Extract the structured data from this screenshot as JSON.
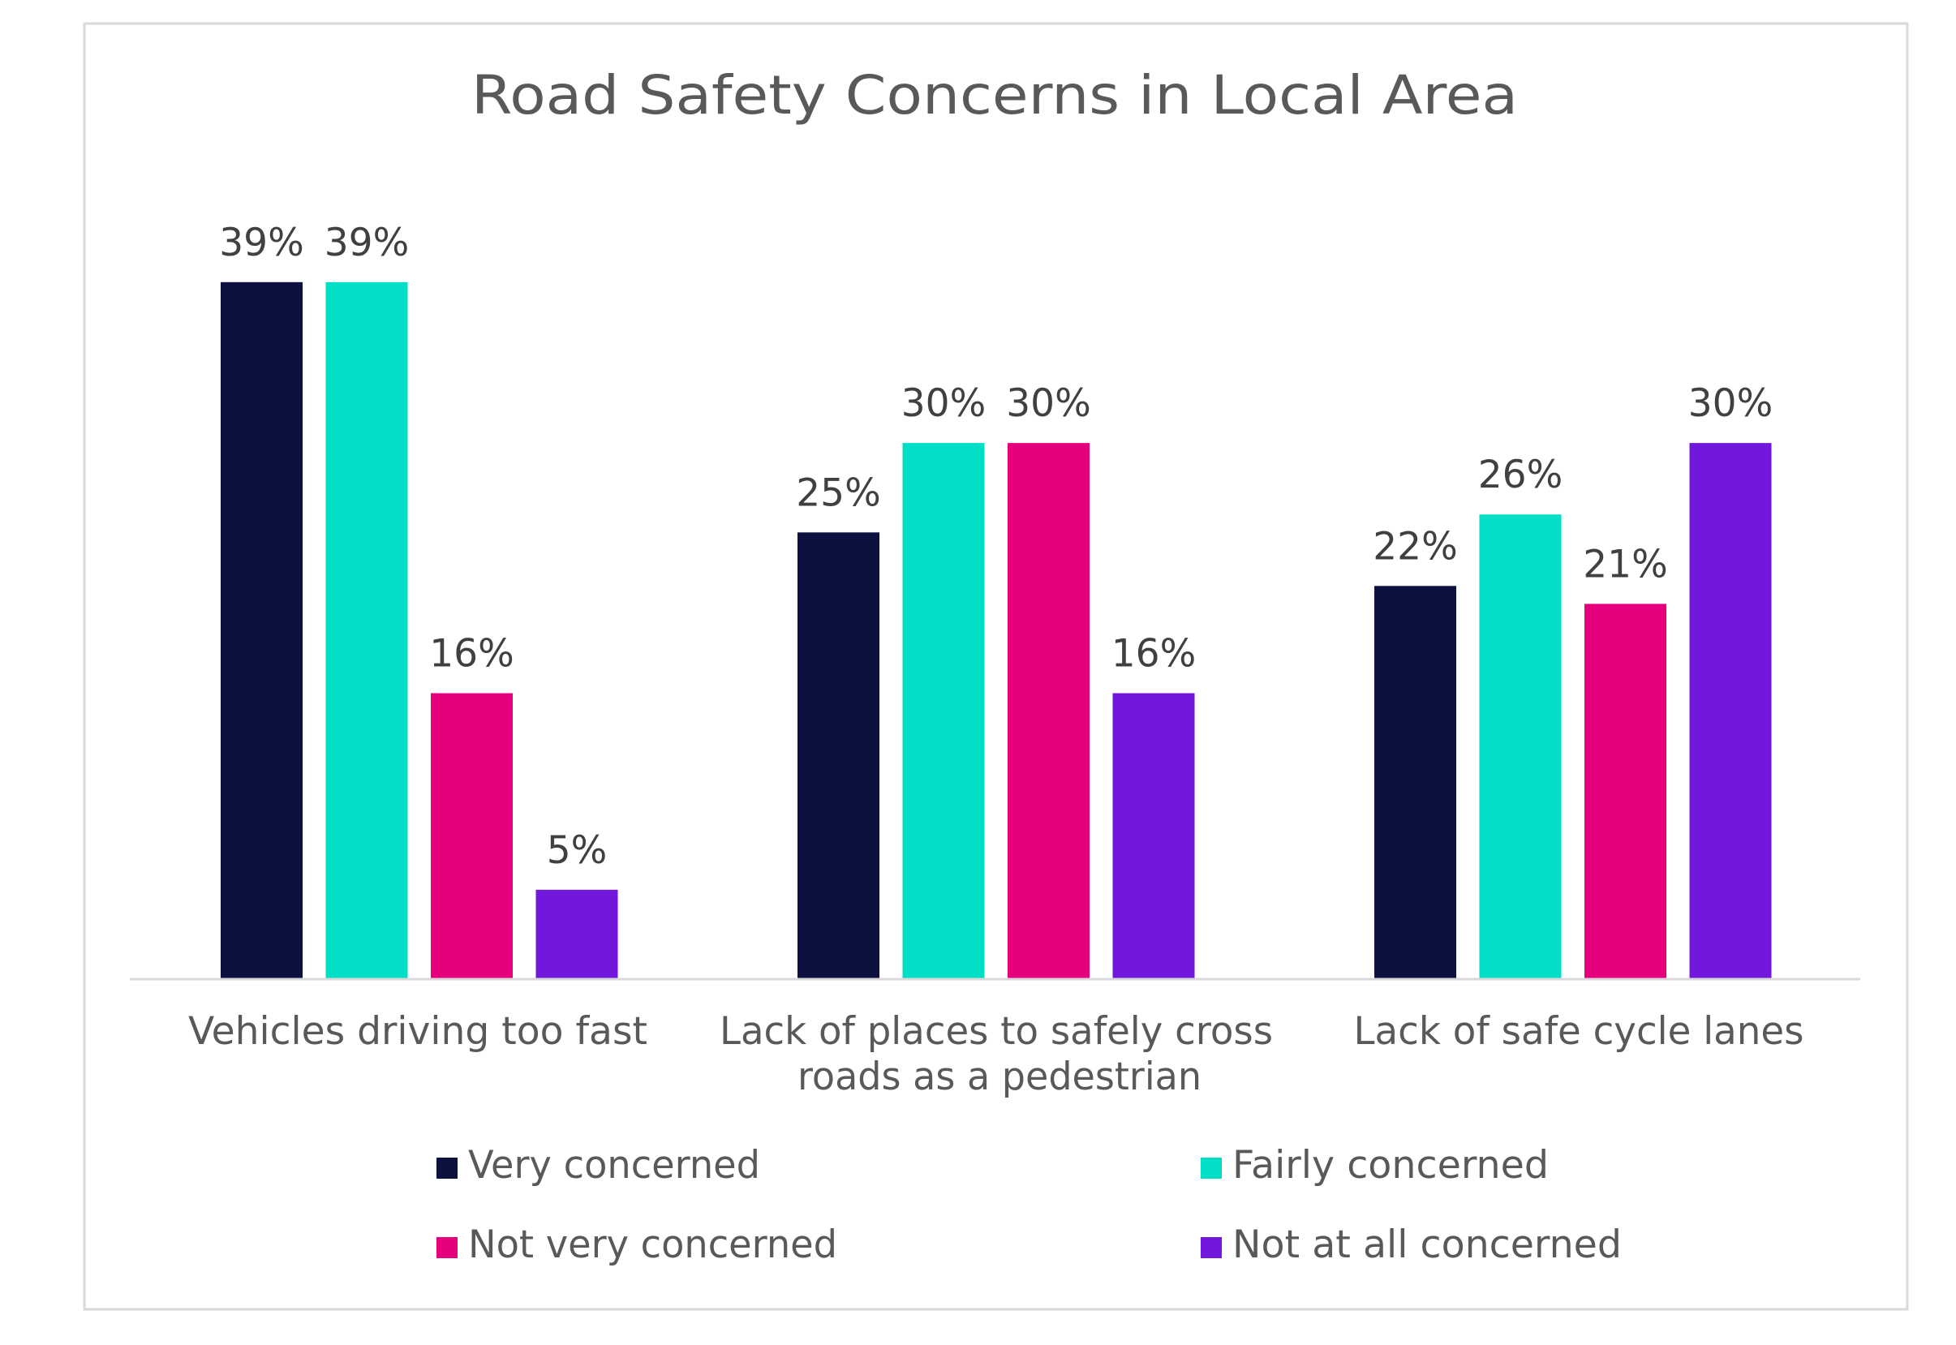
{
  "chart_data": {
    "type": "bar",
    "title": "Road Safety Concerns in Local Area",
    "xlabel": "",
    "ylabel": "",
    "ylim": [
      0,
      45
    ],
    "grid": false,
    "legend_position": "bottom",
    "value_suffix": "%",
    "categories": [
      [
        "Vehicles driving too fast"
      ],
      [
        "Lack of places to safely cross",
        "roads as a pedestrian"
      ],
      [
        "Lack of safe cycle lanes"
      ]
    ],
    "series": [
      {
        "name": "Very concerned",
        "color": "#0d1140",
        "values": [
          39,
          25,
          22
        ],
        "labels": [
          "39%",
          "25%",
          "22%"
        ]
      },
      {
        "name": "Fairly concerned",
        "color": "#00dfc5",
        "values": [
          39,
          30,
          26
        ],
        "labels": [
          "39%",
          "30%",
          "26%"
        ]
      },
      {
        "name": "Not very concerned",
        "color": "#e6007e",
        "values": [
          16,
          30,
          21
        ],
        "labels": [
          "16%",
          "30%",
          "21%"
        ]
      },
      {
        "name": "Not at all concerned",
        "color": "#7218dc",
        "values": [
          5,
          16,
          30
        ],
        "labels": [
          "5%",
          "16%",
          "30%"
        ]
      }
    ]
  }
}
